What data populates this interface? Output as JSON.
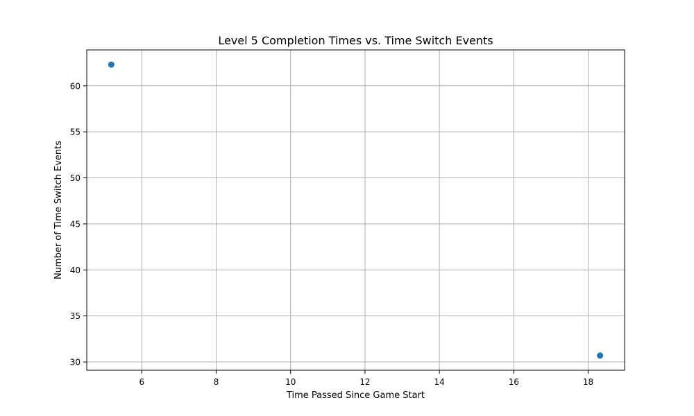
{
  "chart_data": {
    "type": "scatter",
    "title": "Level 5 Completion Times vs. Time Switch Events",
    "xlabel": "Time Passed Since Game Start",
    "ylabel": "Number of Time Switch Events",
    "xlim": [
      4.52,
      18.98
    ],
    "ylim": [
      29.1,
      63.9
    ],
    "xticks": [
      6,
      8,
      10,
      12,
      14,
      16,
      18
    ],
    "yticks": [
      30,
      35,
      40,
      45,
      50,
      55,
      60
    ],
    "grid": true,
    "marker_color": "#1f77b4",
    "points": [
      {
        "x": 5.18,
        "y": 62.3
      },
      {
        "x": 18.32,
        "y": 30.7
      }
    ]
  }
}
